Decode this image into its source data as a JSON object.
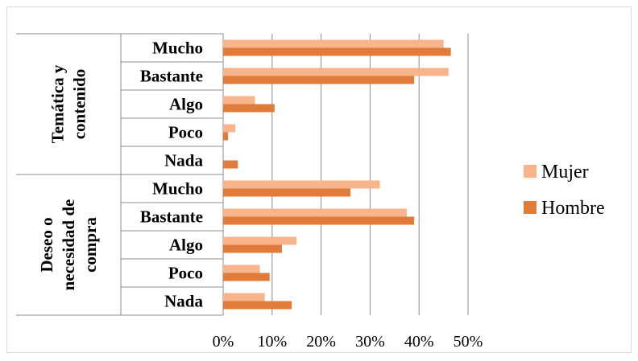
{
  "chart_data": {
    "type": "bar",
    "orientation": "horizontal",
    "groups": [
      {
        "name": "Temática y contenido",
        "categories": [
          "Mucho",
          "Bastante",
          "Algo",
          "Poco",
          "Nada"
        ]
      },
      {
        "name": "Deseo o necesidad de compra",
        "categories": [
          "Mucho",
          "Bastante",
          "Algo",
          "Poco",
          "Nada"
        ]
      }
    ],
    "series": [
      {
        "name": "Mujer",
        "color": "#F8B48A",
        "values": [
          45,
          46,
          6.5,
          2.5,
          0,
          32,
          37.5,
          15,
          7.5,
          8.5
        ]
      },
      {
        "name": "Hombre",
        "color": "#E07B39",
        "values": [
          46.5,
          39,
          10.5,
          1,
          3,
          26,
          39,
          12,
          9.5,
          14
        ]
      }
    ],
    "xlim": [
      0,
      50
    ],
    "xticks": [
      "0%",
      "10%",
      "20%",
      "30%",
      "40%",
      "50%"
    ],
    "grid": true,
    "legend_position": "right"
  }
}
